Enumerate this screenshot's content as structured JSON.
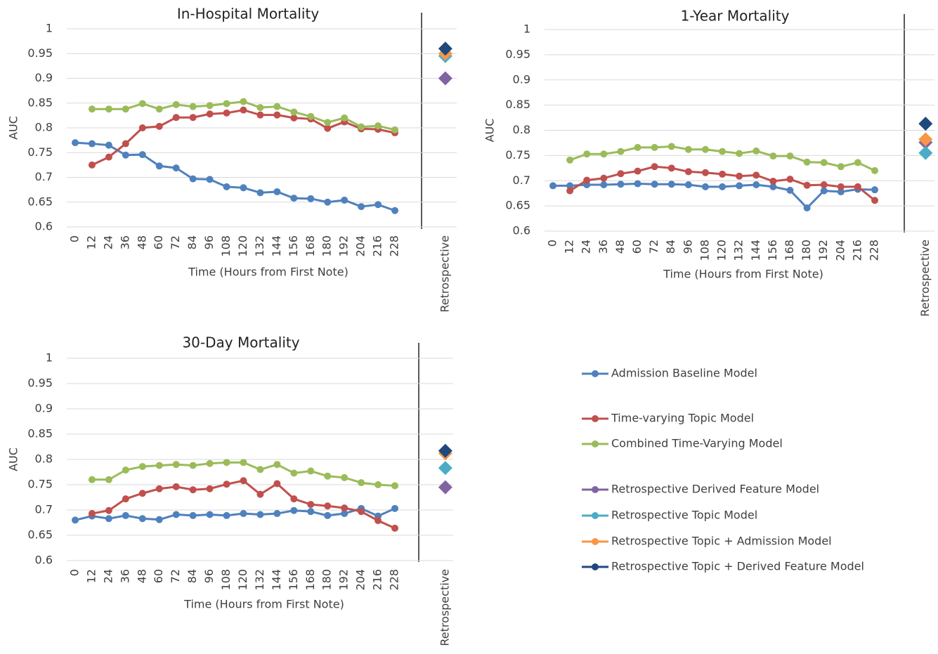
{
  "chart_data": [
    {
      "type": "line",
      "title": "In-Hospital Mortality",
      "y_label": "AUC",
      "x_label": "Time (Hours from First Note)",
      "categories": [
        "0",
        "12",
        "24",
        "36",
        "48",
        "60",
        "72",
        "84",
        "96",
        "108",
        "120",
        "132",
        "144",
        "156",
        "168",
        "180",
        "192",
        "204",
        "216",
        "228",
        null,
        null,
        "Retrospective"
      ],
      "ylim": [
        0.6,
        1
      ],
      "yticks": [
        0.6,
        0.65,
        0.7,
        0.75,
        0.8,
        0.85,
        0.9,
        0.95,
        1
      ],
      "grid": true,
      "series": [
        {
          "name": "Admission Baseline Model",
          "color": "#4f81bd",
          "marker": "circle",
          "values": [
            0.77,
            0.768,
            0.765,
            0.745,
            0.746,
            0.723,
            0.719,
            0.697,
            0.696,
            0.681,
            0.679,
            0.669,
            0.671,
            0.658,
            0.657,
            0.65,
            0.654,
            0.641,
            0.645,
            0.633,
            null,
            null,
            null
          ]
        },
        {
          "name": "Time-varying Topic Model",
          "color": "#c0504d",
          "marker": "circle",
          "values": [
            null,
            0.725,
            0.741,
            0.768,
            0.8,
            0.803,
            0.821,
            0.821,
            0.828,
            0.83,
            0.836,
            0.826,
            0.826,
            0.82,
            0.818,
            0.799,
            0.812,
            0.798,
            0.797,
            0.79,
            null,
            null,
            null
          ]
        },
        {
          "name": "Combined  Time-Varying Model",
          "color": "#9bbb59",
          "marker": "circle",
          "values": [
            null,
            0.838,
            0.838,
            0.838,
            0.849,
            0.838,
            0.847,
            0.843,
            0.845,
            0.849,
            0.853,
            0.841,
            0.843,
            0.832,
            0.823,
            0.811,
            0.82,
            0.802,
            0.804,
            0.796,
            null,
            null,
            null
          ]
        },
        {
          "name": "Retrospective Derived Feature Model",
          "color": "#8064a2",
          "marker": "diamond",
          "values": [
            null,
            null,
            null,
            null,
            null,
            null,
            null,
            null,
            null,
            null,
            null,
            null,
            null,
            null,
            null,
            null,
            null,
            null,
            null,
            null,
            null,
            null,
            0.9
          ]
        },
        {
          "name": "Retrospective Topic Model",
          "color": "#4bacc6",
          "marker": "diamond",
          "values": [
            null,
            null,
            null,
            null,
            null,
            null,
            null,
            null,
            null,
            null,
            null,
            null,
            null,
            null,
            null,
            null,
            null,
            null,
            null,
            null,
            null,
            null,
            0.945
          ]
        },
        {
          "name": "Retrospective Topic + Admission Model",
          "color": "#f79646",
          "marker": "diamond",
          "values": [
            null,
            null,
            null,
            null,
            null,
            null,
            null,
            null,
            null,
            null,
            null,
            null,
            null,
            null,
            null,
            null,
            null,
            null,
            null,
            null,
            null,
            null,
            0.95
          ]
        },
        {
          "name": "Retrospective Topic + Derived Feature Model",
          "color": "#1f497d",
          "marker": "diamond",
          "values": [
            null,
            null,
            null,
            null,
            null,
            null,
            null,
            null,
            null,
            null,
            null,
            null,
            null,
            null,
            null,
            null,
            null,
            null,
            null,
            null,
            null,
            null,
            0.96
          ]
        }
      ]
    },
    {
      "type": "line",
      "title": "1-Year Mortality",
      "y_label": "AUC",
      "x_label": "Time (Hours from First Note)",
      "categories": [
        "0",
        "12",
        "24",
        "36",
        "48",
        "60",
        "72",
        "84",
        "96",
        "108",
        "120",
        "132",
        "144",
        "156",
        "168",
        "180",
        "192",
        "204",
        "216",
        "228",
        null,
        null,
        "Retrospective"
      ],
      "ylim": [
        0.6,
        1
      ],
      "yticks": [
        0.6,
        0.65,
        0.7,
        0.75,
        0.8,
        0.85,
        0.9,
        0.95,
        1
      ],
      "grid": true,
      "series": [
        {
          "color": "#4f81bd",
          "marker": "circle",
          "values": [
            0.69,
            0.69,
            0.692,
            0.692,
            0.693,
            0.694,
            0.693,
            0.693,
            0.692,
            0.688,
            0.688,
            0.69,
            0.692,
            0.688,
            0.681,
            0.646,
            0.68,
            0.678,
            0.683,
            0.682,
            null,
            null,
            null
          ]
        },
        {
          "color": "#c0504d",
          "marker": "circle",
          "values": [
            null,
            0.68,
            0.701,
            0.705,
            0.714,
            0.719,
            0.728,
            0.725,
            0.718,
            0.716,
            0.713,
            0.709,
            0.711,
            0.699,
            0.703,
            0.691,
            0.692,
            0.688,
            0.688,
            0.661,
            null,
            null,
            null
          ]
        },
        {
          "color": "#9bbb59",
          "marker": "circle",
          "values": [
            null,
            0.741,
            0.753,
            0.753,
            0.758,
            0.766,
            0.766,
            0.768,
            0.762,
            0.762,
            0.758,
            0.754,
            0.759,
            0.749,
            0.749,
            0.737,
            0.736,
            0.728,
            0.736,
            0.72,
            null,
            null,
            null
          ]
        },
        {
          "color": "#8064a2",
          "marker": "diamond",
          "values": [
            null,
            null,
            null,
            null,
            null,
            null,
            null,
            null,
            null,
            null,
            null,
            null,
            null,
            null,
            null,
            null,
            null,
            null,
            null,
            null,
            null,
            null,
            0.776
          ]
        },
        {
          "color": "#4bacc6",
          "marker": "diamond",
          "values": [
            null,
            null,
            null,
            null,
            null,
            null,
            null,
            null,
            null,
            null,
            null,
            null,
            null,
            null,
            null,
            null,
            null,
            null,
            null,
            null,
            null,
            null,
            0.755
          ]
        },
        {
          "color": "#f79646",
          "marker": "diamond",
          "values": [
            null,
            null,
            null,
            null,
            null,
            null,
            null,
            null,
            null,
            null,
            null,
            null,
            null,
            null,
            null,
            null,
            null,
            null,
            null,
            null,
            null,
            null,
            0.782
          ]
        },
        {
          "color": "#1f497d",
          "marker": "diamond",
          "values": [
            null,
            null,
            null,
            null,
            null,
            null,
            null,
            null,
            null,
            null,
            null,
            null,
            null,
            null,
            null,
            null,
            null,
            null,
            null,
            null,
            null,
            null,
            0.813
          ]
        }
      ]
    },
    {
      "type": "line",
      "title": "30-Day Mortality",
      "y_label": "AUC",
      "x_label": "Time (Hours from First Note)",
      "categories": [
        "0",
        "12",
        "24",
        "36",
        "48",
        "60",
        "72",
        "84",
        "96",
        "108",
        "120",
        "132",
        "144",
        "156",
        "168",
        "180",
        "192",
        "204",
        "216",
        "228",
        null,
        null,
        "Retrospective"
      ],
      "ylim": [
        0.6,
        1
      ],
      "yticks": [
        0.6,
        0.65,
        0.7,
        0.75,
        0.8,
        0.85,
        0.9,
        0.95,
        1
      ],
      "grid": true,
      "series": [
        {
          "color": "#4f81bd",
          "marker": "circle",
          "values": [
            0.68,
            0.688,
            0.683,
            0.689,
            0.683,
            0.681,
            0.691,
            0.689,
            0.691,
            0.689,
            0.693,
            0.691,
            0.693,
            0.699,
            0.697,
            0.689,
            0.693,
            0.703,
            0.688,
            0.703,
            null,
            null,
            null
          ]
        },
        {
          "color": "#c0504d",
          "marker": "circle",
          "values": [
            null,
            0.693,
            0.699,
            0.722,
            0.733,
            0.742,
            0.746,
            0.74,
            0.742,
            0.751,
            0.758,
            0.731,
            0.752,
            0.722,
            0.711,
            0.708,
            0.704,
            0.697,
            0.679,
            0.664,
            null,
            null,
            null
          ]
        },
        {
          "color": "#9bbb59",
          "marker": "circle",
          "values": [
            null,
            0.76,
            0.76,
            0.779,
            0.786,
            0.788,
            0.79,
            0.788,
            0.792,
            0.794,
            0.794,
            0.78,
            0.79,
            0.773,
            0.777,
            0.767,
            0.764,
            0.754,
            0.75,
            0.748,
            null,
            null,
            null
          ]
        },
        {
          "color": "#8064a2",
          "marker": "diamond",
          "values": [
            null,
            null,
            null,
            null,
            null,
            null,
            null,
            null,
            null,
            null,
            null,
            null,
            null,
            null,
            null,
            null,
            null,
            null,
            null,
            null,
            null,
            null,
            0.745
          ]
        },
        {
          "color": "#4bacc6",
          "marker": "diamond",
          "values": [
            null,
            null,
            null,
            null,
            null,
            null,
            null,
            null,
            null,
            null,
            null,
            null,
            null,
            null,
            null,
            null,
            null,
            null,
            null,
            null,
            null,
            null,
            0.783
          ]
        },
        {
          "color": "#f79646",
          "marker": "diamond",
          "values": [
            null,
            null,
            null,
            null,
            null,
            null,
            null,
            null,
            null,
            null,
            null,
            null,
            null,
            null,
            null,
            null,
            null,
            null,
            null,
            null,
            null,
            null,
            0.812
          ]
        },
        {
          "color": "#1f497d",
          "marker": "diamond",
          "values": [
            null,
            null,
            null,
            null,
            null,
            null,
            null,
            null,
            null,
            null,
            null,
            null,
            null,
            null,
            null,
            null,
            null,
            null,
            null,
            null,
            null,
            null,
            0.817
          ]
        }
      ]
    }
  ]
}
